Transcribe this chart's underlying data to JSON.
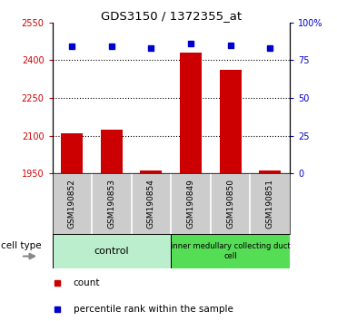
{
  "title": "GDS3150 / 1372355_at",
  "samples": [
    "GSM190852",
    "GSM190853",
    "GSM190854",
    "GSM190849",
    "GSM190850",
    "GSM190851"
  ],
  "counts": [
    2110,
    2125,
    1962,
    2430,
    2360,
    1962
  ],
  "percentiles": [
    84,
    84,
    83,
    86,
    85,
    83
  ],
  "ylim_left": [
    1950,
    2550
  ],
  "ylim_right": [
    0,
    100
  ],
  "yticks_left": [
    1950,
    2100,
    2250,
    2400,
    2550
  ],
  "yticks_right": [
    0,
    25,
    50,
    75,
    100
  ],
  "ytick_labels_right": [
    "0",
    "25",
    "50",
    "75",
    "100%"
  ],
  "bar_color": "#cc0000",
  "dot_color": "#0000cc",
  "bar_bottom": 1950,
  "cell_type_groups": [
    {
      "label": "control",
      "count": 3,
      "color": "#bbeecc"
    },
    {
      "label": "inner medullary collecting duct\ncell",
      "count": 3,
      "color": "#55dd55"
    }
  ],
  "legend_count_label": "count",
  "legend_pct_label": "percentile rank within the sample",
  "cell_type_label": "cell type",
  "tick_bg_color": "#cccccc",
  "plot_bg_color": "#ffffff",
  "separator_color": "#000000"
}
